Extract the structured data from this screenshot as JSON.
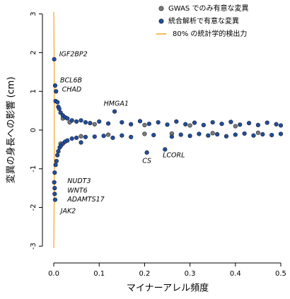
{
  "chart_data": {
    "type": "scatter",
    "xlabel": "マイナーアレル頻度",
    "ylabel": "変異の身長への影響 (cm)",
    "xlim": [
      -0.01,
      0.51
    ],
    "ylim": [
      -3.05,
      3.05
    ],
    "xticks": [
      {
        "value": 0,
        "label": "0.0"
      },
      0.1,
      0.2,
      0.3,
      0.4,
      0.5
    ],
    "yticks": [
      -3,
      -2,
      -1,
      0,
      1,
      2,
      3
    ],
    "legend": "top-right",
    "series": [
      {
        "name": "GWAS でのみ有意な変異",
        "color": "#7a7a7a",
        "x": [
          0.035,
          0.09,
          0.2,
          0.3,
          0.4,
          0.06,
          0.12,
          0.2,
          0.26,
          0.35,
          0.45,
          0.015,
          0.02
        ],
        "values": [
          0.2,
          0.15,
          0.13,
          0.12,
          0.1,
          -0.16,
          -0.12,
          -0.1,
          -0.09,
          -0.08,
          -0.07,
          -0.35,
          0.3
        ]
      },
      {
        "name": "統合解析で有意な変異",
        "color": "#1f4f9c",
        "x": [
          0.001,
          0.003,
          0.005,
          0.004,
          0.008,
          0.01,
          0.012,
          0.015,
          0.02,
          0.025,
          0.03,
          0.04,
          0.05,
          0.06,
          0.07,
          0.08,
          0.1,
          0.12,
          0.134,
          0.15,
          0.17,
          0.19,
          0.21,
          0.23,
          0.25,
          0.27,
          0.29,
          0.31,
          0.33,
          0.35,
          0.37,
          0.39,
          0.41,
          0.43,
          0.45,
          0.47,
          0.49,
          0.5,
          0.001,
          0.002,
          0.002,
          0.003,
          0.002,
          0.004,
          0.006,
          0.008,
          0.01,
          0.013,
          0.016,
          0.02,
          0.025,
          0.03,
          0.04,
          0.05,
          0.06,
          0.07,
          0.09,
          0.11,
          0.13,
          0.15,
          0.17,
          0.205,
          0.22,
          0.245,
          0.26,
          0.28,
          0.3,
          0.32,
          0.34,
          0.36,
          0.38,
          0.4,
          0.42,
          0.44,
          0.46,
          0.48,
          0.5
        ],
        "values": [
          1.83,
          1.15,
          1.0,
          0.75,
          0.72,
          0.6,
          0.55,
          0.45,
          0.38,
          0.33,
          0.3,
          0.25,
          0.22,
          0.25,
          0.2,
          0.18,
          0.22,
          0.17,
          0.48,
          0.2,
          0.15,
          0.23,
          0.16,
          0.2,
          0.14,
          0.22,
          0.15,
          0.19,
          0.13,
          0.2,
          0.16,
          0.21,
          0.14,
          0.18,
          0.13,
          0.19,
          0.15,
          0.12,
          -1.35,
          -1.5,
          -1.65,
          -1.8,
          -1.1,
          -0.9,
          -0.8,
          -0.65,
          -0.55,
          -0.45,
          -0.4,
          -0.35,
          -0.3,
          -0.27,
          -0.22,
          -0.2,
          -0.32,
          -0.18,
          -0.17,
          -0.15,
          -0.2,
          -0.14,
          -0.18,
          -0.58,
          -0.13,
          -0.5,
          -0.17,
          -0.12,
          -0.15,
          -0.1,
          -0.14,
          -0.11,
          -0.16,
          -0.12,
          -0.09,
          -0.14,
          -0.11,
          -0.13,
          -0.1
        ]
      }
    ],
    "power_curve": {
      "name": "80% の統計学的検出力",
      "color": "#f5a623",
      "x": [
        0,
        0.001,
        0.001,
        0
      ],
      "y": [
        3.05,
        1.5,
        -1.5,
        -3.05
      ]
    },
    "annotations": [
      {
        "text": "IGF2BP2",
        "x": 0.012,
        "y": 1.95
      },
      {
        "text": "BCL6B",
        "x": 0.014,
        "y": 1.28
      },
      {
        "text": "CHAD",
        "x": 0.018,
        "y": 1.04
      },
      {
        "text": "HMGA1",
        "x": 0.11,
        "y": 0.68
      },
      {
        "text": "CS",
        "x": 0.195,
        "y": -0.8
      },
      {
        "text": "LCORL",
        "x": 0.24,
        "y": -0.66
      },
      {
        "text": "NUDT3",
        "x": 0.03,
        "y": -1.32
      },
      {
        "text": "WNT6",
        "x": 0.03,
        "y": -1.57
      },
      {
        "text": "ADAMTS17",
        "x": 0.03,
        "y": -1.8
      },
      {
        "text": "JAK2",
        "x": 0.015,
        "y": -2.1
      }
    ]
  }
}
